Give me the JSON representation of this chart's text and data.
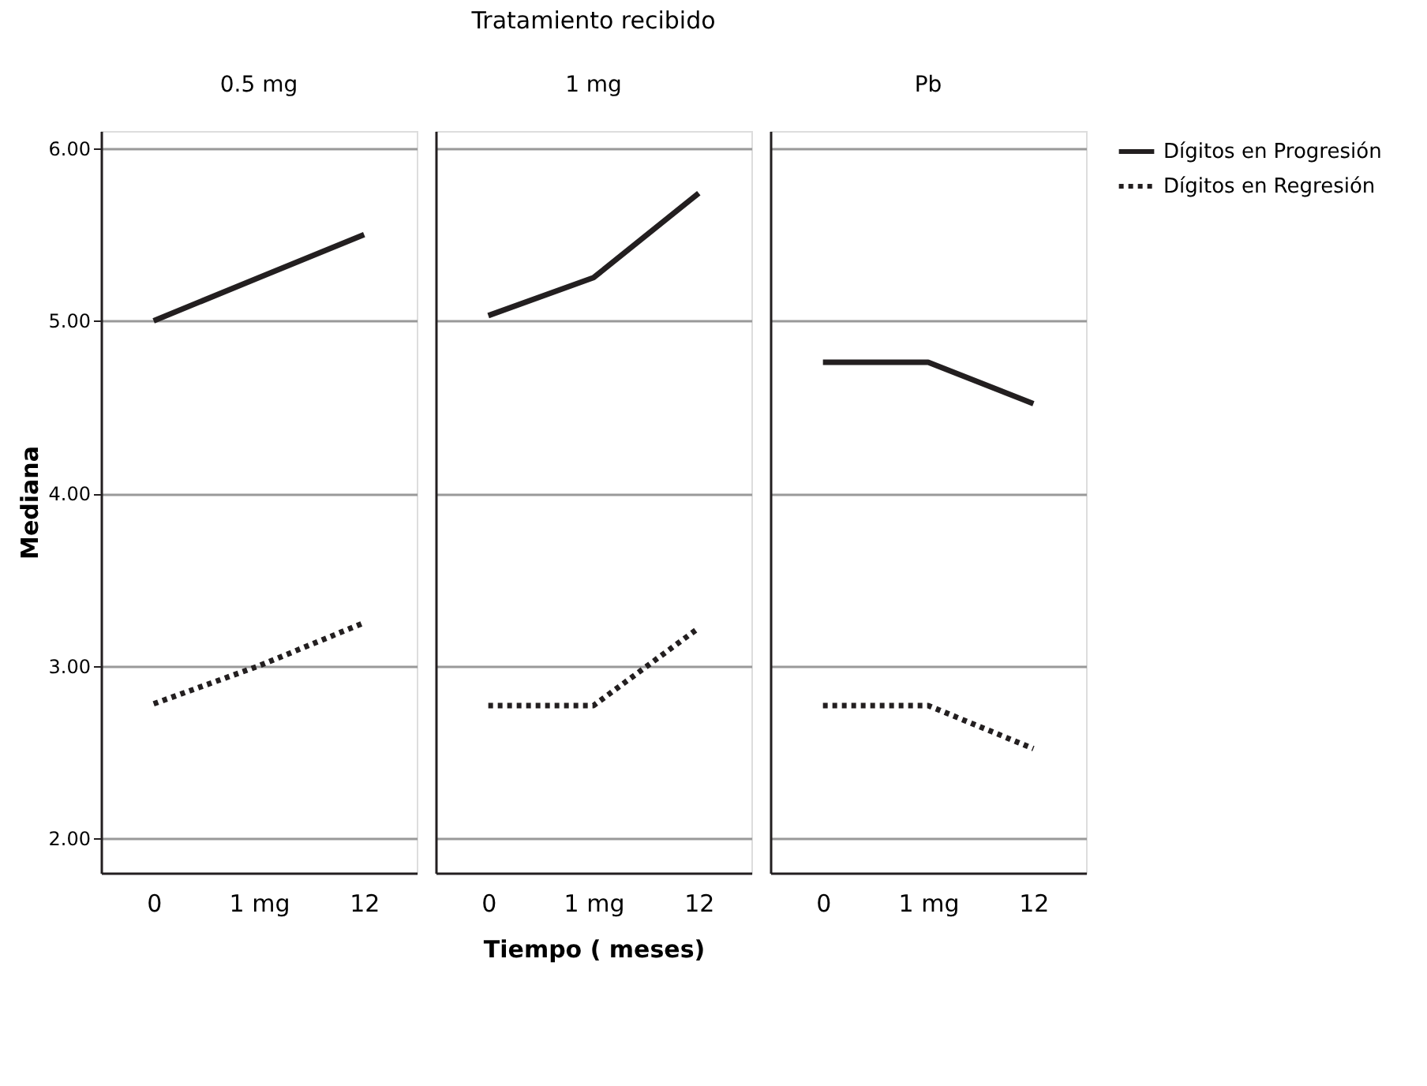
{
  "chart_data": [
    {
      "type": "line",
      "title": "0.5 mg",
      "ylabel": "Mediana",
      "categories": [
        "0",
        "1 mg",
        "12"
      ],
      "ylim": [
        1.8,
        6.1
      ],
      "yticks": [
        {
          "value": 2,
          "label": "2.00"
        },
        {
          "value": 3,
          "label": "3.00"
        },
        {
          "value": 4,
          "label": "4.00"
        },
        {
          "value": 5,
          "label": "5.00"
        },
        {
          "value": 6,
          "label": "6.00"
        }
      ],
      "grid": "y",
      "legend": "top right",
      "series": [
        {
          "name": "Dígitos en Progresión",
          "color": "#231f20",
          "line_style": "solid",
          "values": [
            5.0,
            5.25,
            5.5
          ]
        },
        {
          "name": "Dígitos en Regresión",
          "color": "#231f20",
          "line_style": "dotted",
          "values": [
            2.78,
            3.0,
            3.25
          ]
        }
      ]
    },
    {
      "type": "line",
      "title": "1 mg",
      "xlabel": "Tiempo ( meses)",
      "annotations": [
        "Tratamiento recibido"
      ],
      "categories": [
        "0",
        "1 mg",
        "12"
      ],
      "ylim": [
        1.8,
        6.1
      ],
      "yticks": [
        2,
        3,
        4,
        5,
        6
      ],
      "tick_labels": "x",
      "grid": "y",
      "legend": "top right",
      "series": [
        {
          "name": "Dígitos en Progresión",
          "color": "#231f20",
          "line_style": "solid",
          "values": [
            5.03,
            5.25,
            5.74
          ]
        },
        {
          "name": "Dígitos en Regresión",
          "color": "#231f20",
          "line_style": "dotted",
          "values": [
            2.77,
            2.77,
            3.22
          ]
        }
      ]
    },
    {
      "type": "line",
      "title": "Pb",
      "categories": [
        "0",
        "1 mg",
        "12"
      ],
      "ylim": [
        1.8,
        6.1
      ],
      "yticks": [
        2,
        3,
        4,
        5,
        6
      ],
      "tick_labels": "x",
      "grid": "y",
      "legend": "top right",
      "series": [
        {
          "name": "Dígitos en Progresión",
          "color": "#231f20",
          "line_style": "solid",
          "values": [
            4.76,
            4.76,
            4.52
          ]
        },
        {
          "name": "Dígitos en Regresión",
          "color": "#231f20",
          "line_style": "dotted",
          "values": [
            2.77,
            2.77,
            2.52
          ]
        }
      ]
    }
  ]
}
